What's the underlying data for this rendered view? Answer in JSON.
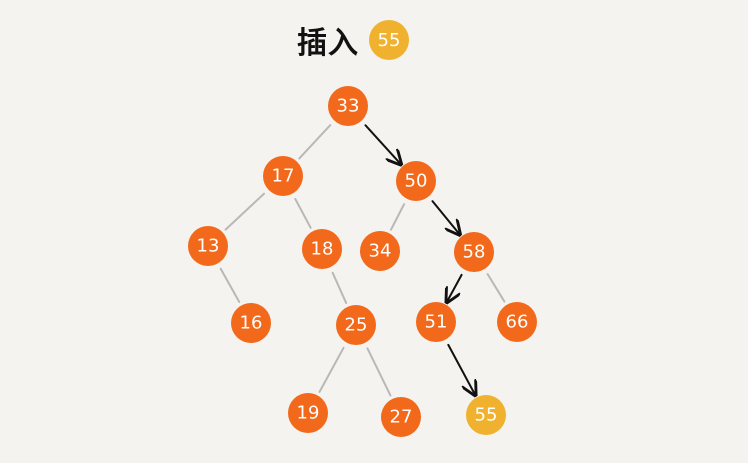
{
  "title": {
    "label": "插入",
    "value": "55"
  },
  "colors": {
    "node_orange": "#f2691b",
    "node_yellow": "#f0b12f",
    "edge_gray": "#b8b8b8",
    "edge_path": "#111111"
  },
  "nodes": [
    {
      "id": "n33",
      "label": "33",
      "color": "orange"
    },
    {
      "id": "n17",
      "label": "17",
      "color": "orange"
    },
    {
      "id": "n50",
      "label": "50",
      "color": "orange"
    },
    {
      "id": "n13",
      "label": "13",
      "color": "orange"
    },
    {
      "id": "n18",
      "label": "18",
      "color": "orange"
    },
    {
      "id": "n34",
      "label": "34",
      "color": "orange"
    },
    {
      "id": "n58",
      "label": "58",
      "color": "orange"
    },
    {
      "id": "n16",
      "label": "16",
      "color": "orange"
    },
    {
      "id": "n25",
      "label": "25",
      "color": "orange"
    },
    {
      "id": "n51",
      "label": "51",
      "color": "orange"
    },
    {
      "id": "n66",
      "label": "66",
      "color": "orange"
    },
    {
      "id": "n19",
      "label": "19",
      "color": "orange"
    },
    {
      "id": "n27",
      "label": "27",
      "color": "orange"
    },
    {
      "id": "n55",
      "label": "55",
      "color": "yellow"
    }
  ],
  "edges": [
    {
      "from": "n33",
      "to": "n17",
      "style": "gray"
    },
    {
      "from": "n33",
      "to": "n50",
      "style": "arrow"
    },
    {
      "from": "n17",
      "to": "n13",
      "style": "gray"
    },
    {
      "from": "n17",
      "to": "n18",
      "style": "gray"
    },
    {
      "from": "n50",
      "to": "n34",
      "style": "gray"
    },
    {
      "from": "n50",
      "to": "n58",
      "style": "arrow"
    },
    {
      "from": "n13",
      "to": "n16",
      "style": "gray"
    },
    {
      "from": "n18",
      "to": "n25",
      "style": "gray"
    },
    {
      "from": "n58",
      "to": "n51",
      "style": "arrow"
    },
    {
      "from": "n58",
      "to": "n66",
      "style": "gray"
    },
    {
      "from": "n25",
      "to": "n19",
      "style": "gray"
    },
    {
      "from": "n25",
      "to": "n27",
      "style": "gray"
    },
    {
      "from": "n51",
      "to": "n55",
      "style": "arrow"
    }
  ]
}
